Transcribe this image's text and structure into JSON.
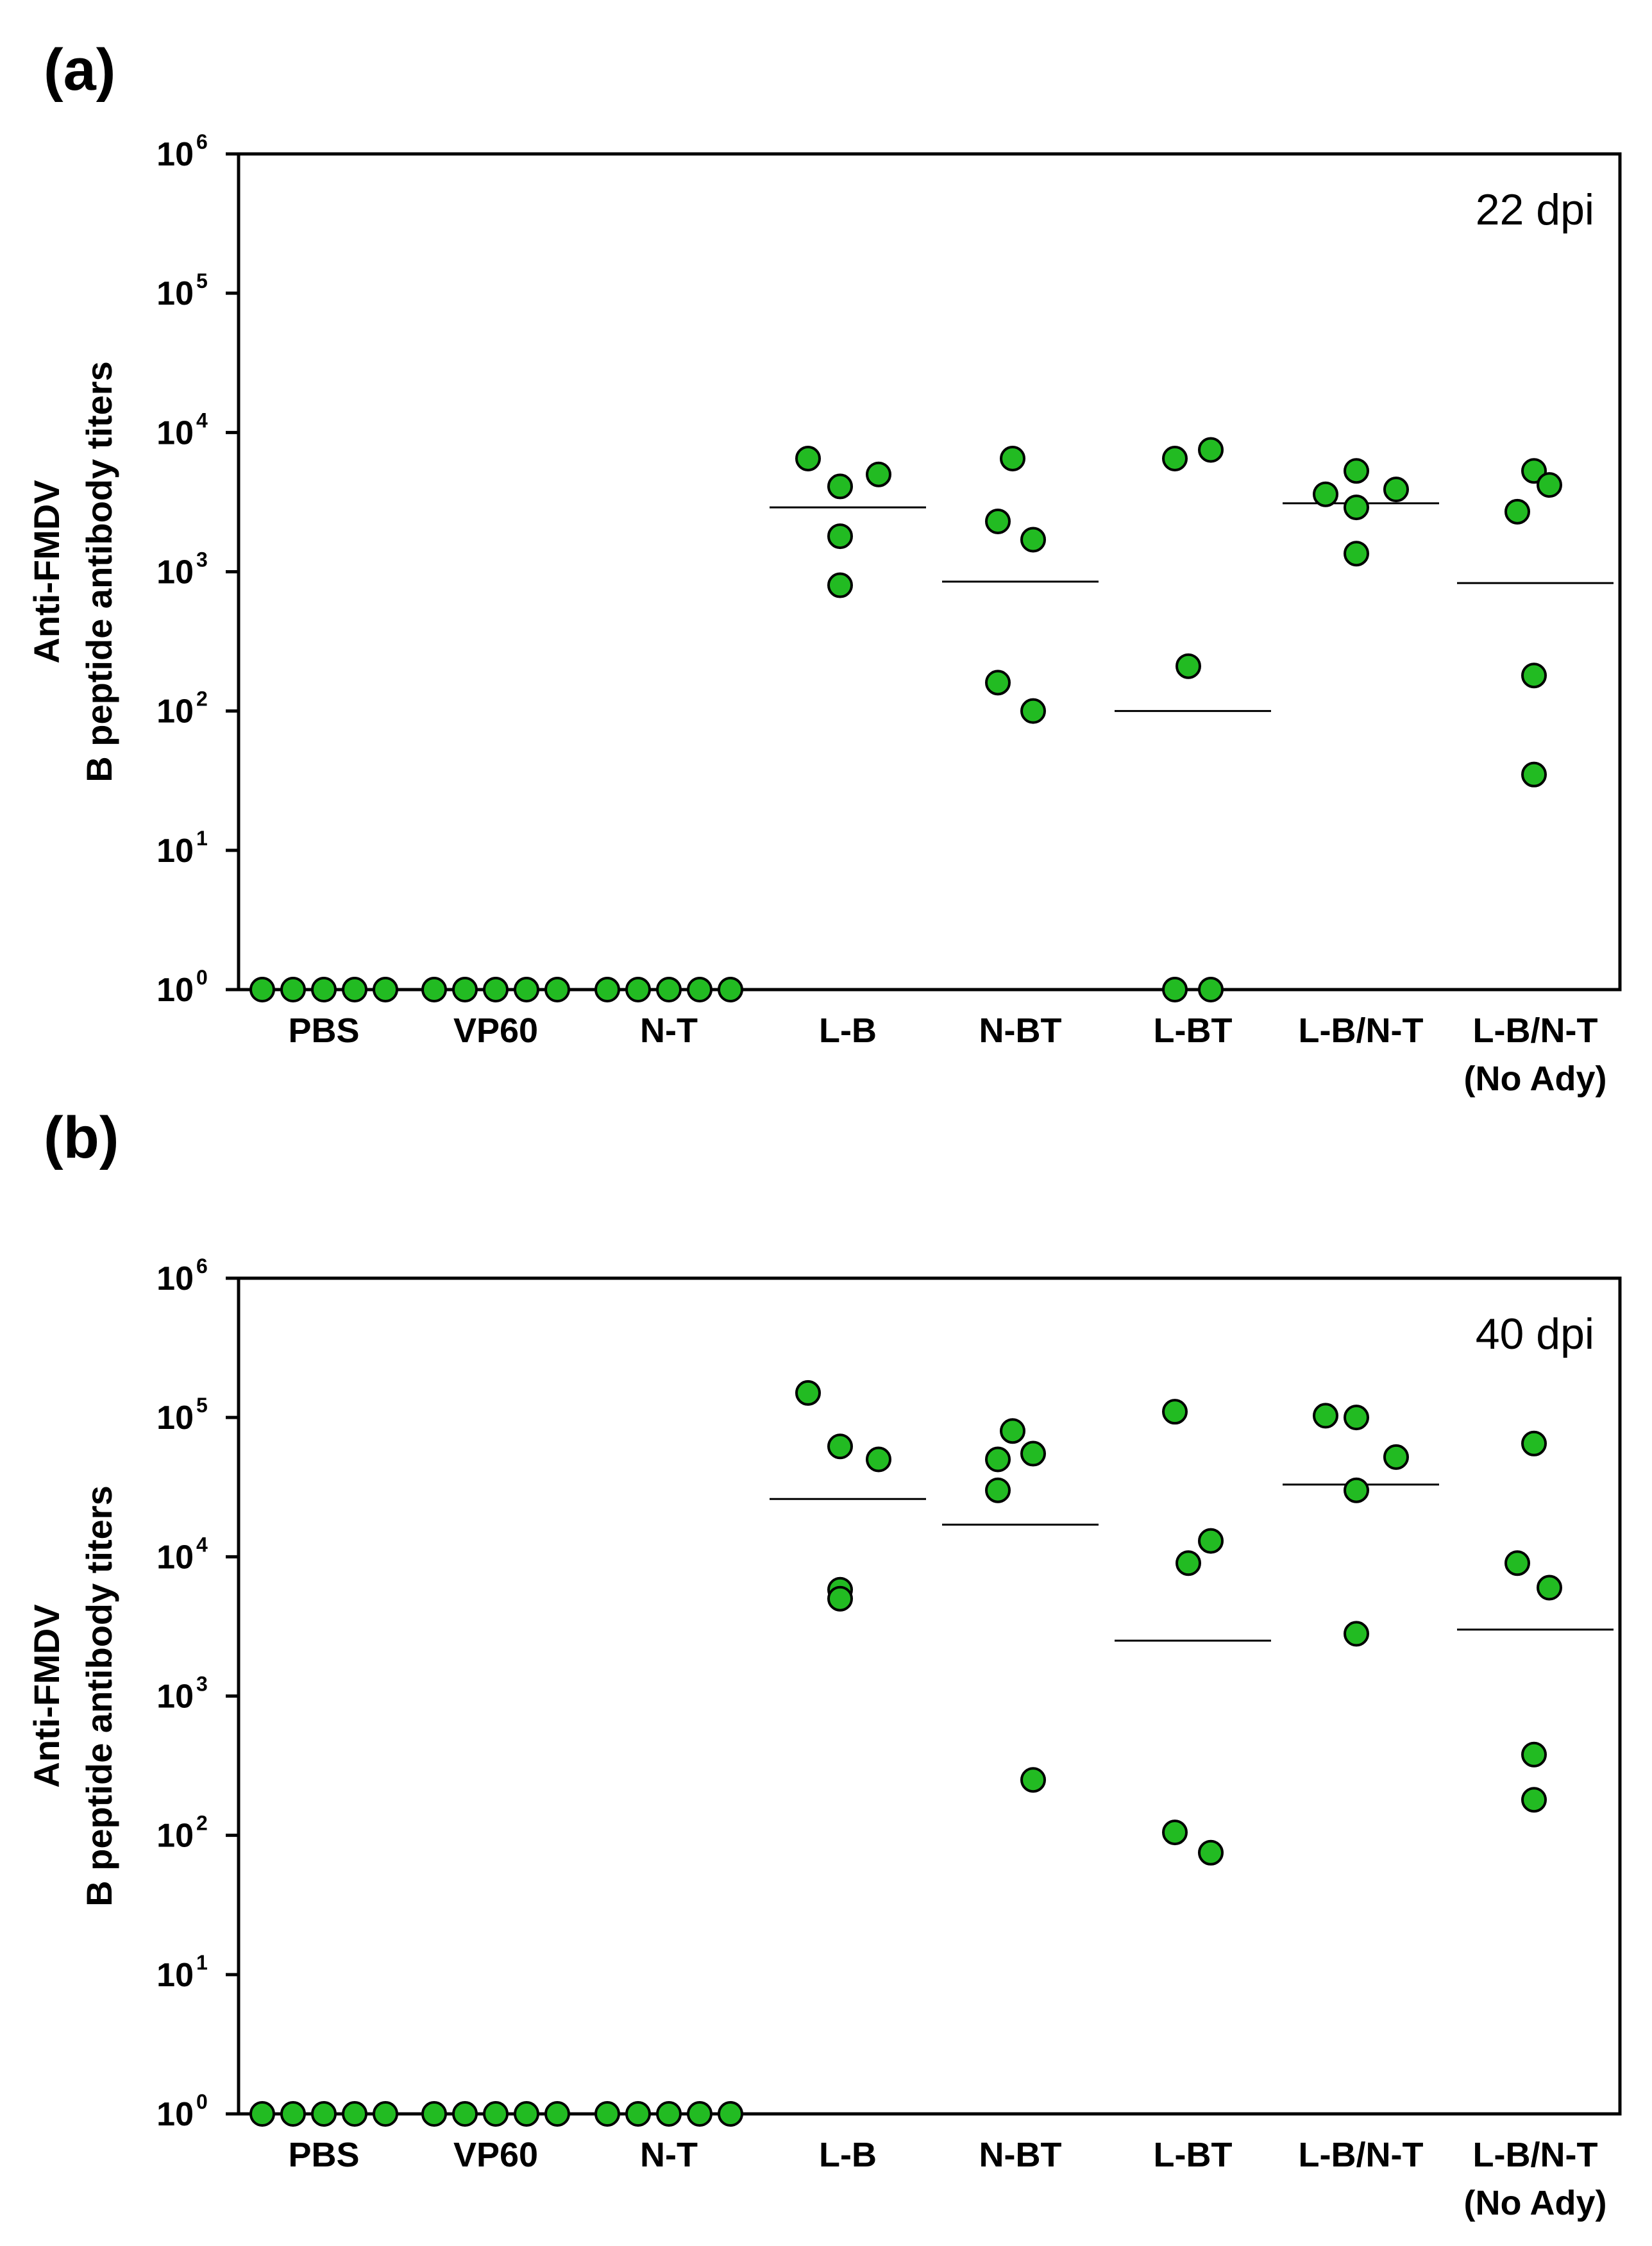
{
  "chart_data": [
    {
      "type": "scatter",
      "panel_label": "(a)",
      "annotation": "22 dpi",
      "ylabel_line1": "Anti-FMDV",
      "ylabel_line2": "B peptide antibody titers",
      "yscale": "log10",
      "ylim": [
        1,
        1000000
      ],
      "y_tick_base": "10",
      "y_tick_exponents": [
        "0",
        "1",
        "2",
        "3",
        "4",
        "5",
        "6"
      ],
      "grid": false,
      "marker_color": "#22bb22",
      "categories": [
        {
          "label": "PBS",
          "label2": "",
          "values": [
            1,
            1,
            1,
            1,
            1
          ],
          "median": null
        },
        {
          "label": "VP60",
          "label2": "",
          "values": [
            1,
            1,
            1,
            1,
            1
          ],
          "median": null
        },
        {
          "label": "N-T",
          "label2": "",
          "values": [
            1,
            1,
            1,
            1,
            1
          ],
          "median": null
        },
        {
          "label": "L-B",
          "label2": "",
          "values": [
            6500,
            4100,
            5000,
            1800,
            800
          ],
          "median": 2900
        },
        {
          "label": "N-BT",
          "label2": "",
          "values": [
            6500,
            2300,
            1700,
            160,
            100
          ],
          "median": 850
        },
        {
          "label": "L-BT",
          "label2": "",
          "values": [
            6500,
            7500,
            210,
            1,
            1
          ],
          "median": 100
        },
        {
          "label": "L-B/N-T",
          "label2": "",
          "values": [
            5300,
            3600,
            3900,
            2900,
            1350
          ],
          "median": 3100
        },
        {
          "label": "L-B/N-T",
          "label2": "(No Ady)",
          "values": [
            5300,
            4200,
            2700,
            180,
            35
          ],
          "median": 830
        }
      ]
    },
    {
      "type": "scatter",
      "panel_label": "(b)",
      "annotation": "40 dpi",
      "ylabel_line1": "Anti-FMDV",
      "ylabel_line2": "B peptide antibody titers",
      "yscale": "log10",
      "ylim": [
        1,
        1000000
      ],
      "y_tick_base": "10",
      "y_tick_exponents": [
        "0",
        "1",
        "2",
        "3",
        "4",
        "5",
        "6"
      ],
      "grid": false,
      "marker_color": "#22bb22",
      "categories": [
        {
          "label": "PBS",
          "label2": "",
          "values": [
            1,
            1,
            1,
            1,
            1
          ],
          "median": null
        },
        {
          "label": "VP60",
          "label2": "",
          "values": [
            1,
            1,
            1,
            1,
            1
          ],
          "median": null
        },
        {
          "label": "N-T",
          "label2": "",
          "values": [
            1,
            1,
            1,
            1,
            1
          ],
          "median": null
        },
        {
          "label": "L-B",
          "label2": "",
          "values": [
            150000,
            62000,
            50000,
            5800,
            5000
          ],
          "median": 26000
        },
        {
          "label": "N-BT",
          "label2": "",
          "values": [
            80000,
            50000,
            55000,
            30000,
            250
          ],
          "median": 17000
        },
        {
          "label": "L-BT",
          "label2": "",
          "values": [
            110000,
            13000,
            9000,
            105,
            75
          ],
          "median": 2500
        },
        {
          "label": "L-B/N-T",
          "label2": "",
          "values": [
            100000,
            103000,
            52000,
            30000,
            2800
          ],
          "median": 33000
        },
        {
          "label": "L-B/N-T",
          "label2": "(No Ady)",
          "values": [
            65000,
            6000,
            9000,
            380,
            180
          ],
          "median": 3000
        }
      ]
    }
  ]
}
